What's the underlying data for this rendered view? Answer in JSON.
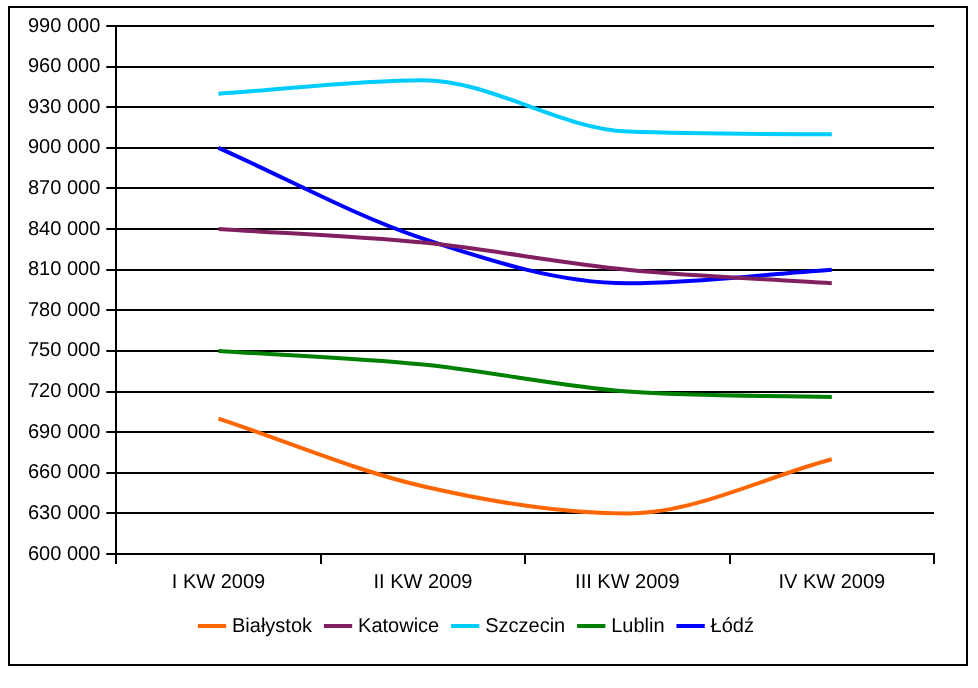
{
  "chart_data": {
    "type": "line",
    "categories": [
      "I KW 2009",
      "II KW 2009",
      "III KW 2009",
      "IV KW 2009"
    ],
    "series": [
      {
        "name": "Białystok",
        "color": "#ff6600",
        "values": [
          700000,
          650000,
          630000,
          670000
        ]
      },
      {
        "name": "Katowice",
        "color": "#802060",
        "values": [
          840000,
          830000,
          810000,
          800000
        ]
      },
      {
        "name": "Szczecin",
        "color": "#00ccff",
        "values": [
          940000,
          950000,
          912000,
          910000
        ]
      },
      {
        "name": "Lublin",
        "color": "#008000",
        "values": [
          750000,
          740000,
          720000,
          716000
        ]
      },
      {
        "name": "Łódź",
        "color": "#0000ff",
        "values": [
          900000,
          833000,
          800000,
          810000
        ]
      }
    ],
    "ylim": [
      600000,
      990000
    ],
    "yticks": [
      {
        "value": 600000,
        "label": "600 000"
      },
      {
        "value": 630000,
        "label": "630 000"
      },
      {
        "value": 660000,
        "label": "660 000"
      },
      {
        "value": 690000,
        "label": "690 000"
      },
      {
        "value": 720000,
        "label": "720 000"
      },
      {
        "value": 750000,
        "label": "750 000"
      },
      {
        "value": 780000,
        "label": "780 000"
      },
      {
        "value": 810000,
        "label": "810 000"
      },
      {
        "value": 840000,
        "label": "840 000"
      },
      {
        "value": 870000,
        "label": "870 000"
      },
      {
        "value": 900000,
        "label": "900 000"
      },
      {
        "value": 930000,
        "label": "930 000"
      },
      {
        "value": 960000,
        "label": "960 000"
      },
      {
        "value": 990000,
        "label": "990 000"
      }
    ],
    "grid": "y",
    "legend": "bottom",
    "marker": "none",
    "line_style": "solid"
  }
}
